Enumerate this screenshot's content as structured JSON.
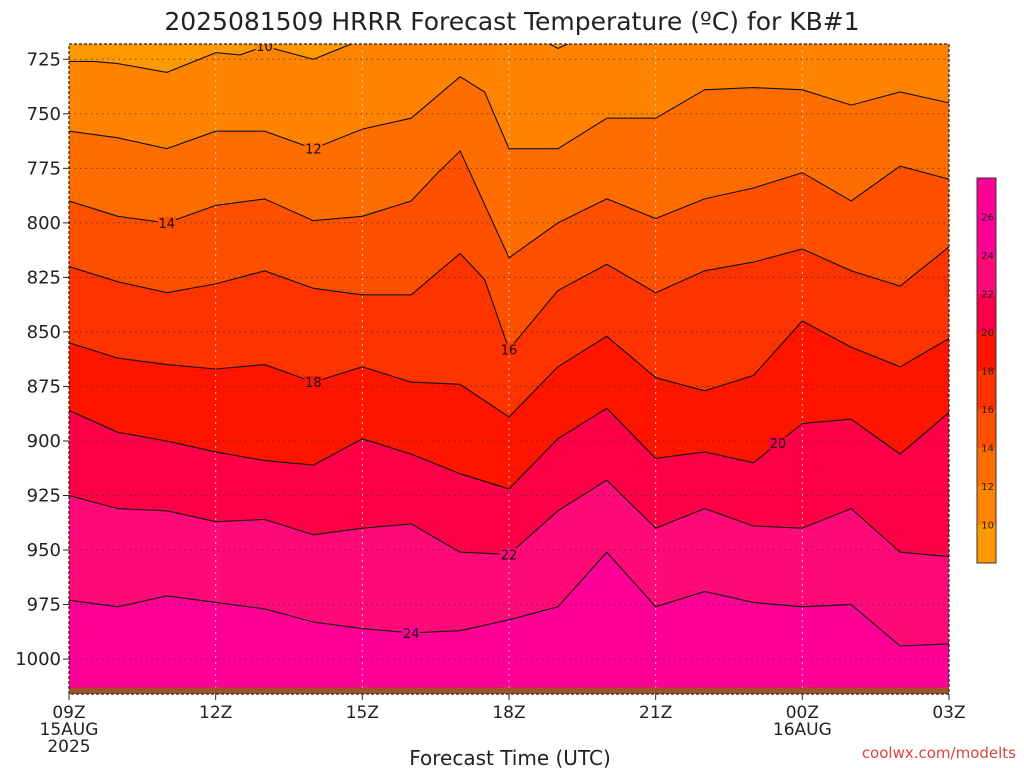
{
  "chart_data": {
    "type": "contour",
    "title": "2025081509 HRRR Forecast Temperature (ºC) for KB#1",
    "xlabel": "Forecast Time (UTC)",
    "credit": "coolwx.com/modelts",
    "y_inverted": true,
    "ylim": [
      1016,
      718
    ],
    "xlim": [
      0,
      18
    ],
    "y_ticks": [
      {
        "value": 725,
        "label": "725"
      },
      {
        "value": 750,
        "label": "750"
      },
      {
        "value": 775,
        "label": "775"
      },
      {
        "value": 800,
        "label": "800"
      },
      {
        "value": 825,
        "label": "825"
      },
      {
        "value": 850,
        "label": "850"
      },
      {
        "value": 875,
        "label": "875"
      },
      {
        "value": 900,
        "label": "900"
      },
      {
        "value": 925,
        "label": "925"
      },
      {
        "value": 950,
        "label": "950"
      },
      {
        "value": 975,
        "label": "975"
      },
      {
        "value": 1000,
        "label": "1000"
      }
    ],
    "x_ticks": [
      {
        "value": 0,
        "lines": [
          "09Z",
          "15AUG",
          "2025"
        ]
      },
      {
        "value": 3,
        "lines": [
          "12Z"
        ]
      },
      {
        "value": 6,
        "lines": [
          "15Z"
        ]
      },
      {
        "value": 9,
        "lines": [
          "18Z"
        ]
      },
      {
        "value": 12,
        "lines": [
          "21Z"
        ]
      },
      {
        "value": 15,
        "lines": [
          "00Z",
          "16AUG"
        ]
      },
      {
        "value": 18,
        "lines": [
          "03Z"
        ]
      }
    ],
    "grid": true,
    "ground": {
      "color": "#a0522d",
      "surface_pressure": [
        1013,
        1013,
        1013,
        1013,
        1013,
        1013,
        1013,
        1013,
        1013,
        1013,
        1013,
        1013,
        1013,
        1013,
        1013,
        1013,
        1013,
        1013,
        1013
      ]
    },
    "levels": [
      10,
      12,
      14,
      16,
      18,
      20,
      22,
      24
    ],
    "band_colors": [
      "#ff9900",
      "#ff8300",
      "#ff6c00",
      "#ff5000",
      "#ff3300",
      "#ff1400",
      "#ff0048",
      "#ff0a78",
      "#ff0096"
    ],
    "contours": [
      {
        "level": 10,
        "label": "10",
        "label_x": 4.0,
        "x": [
          0,
          0.5,
          1,
          2,
          3,
          3.5,
          4,
          5,
          6,
          6.5,
          7,
          8,
          9,
          9.5,
          10,
          10.5,
          11,
          12,
          13,
          14,
          15,
          16,
          17,
          18
        ],
        "p": [
          726,
          726,
          727,
          731,
          722,
          723,
          719,
          725,
          716,
          716,
          716,
          711,
          709,
          714,
          720,
          715,
          712,
          712,
          712,
          712,
          712,
          712,
          712,
          712
        ]
      },
      {
        "level": 12,
        "label": "12",
        "label_x": 5.0,
        "x": [
          0,
          1,
          2,
          3,
          4,
          5,
          6,
          7,
          8,
          8.5,
          9,
          10,
          11,
          12,
          13,
          14,
          15,
          16,
          17,
          18
        ],
        "p": [
          758,
          761,
          766,
          758,
          758,
          766,
          757,
          752,
          733,
          740,
          766,
          766,
          752,
          752,
          739,
          738,
          739,
          746,
          740,
          745
        ]
      },
      {
        "level": 14,
        "label": "14",
        "label_x": 2.0,
        "x": [
          0,
          1,
          2,
          3,
          4,
          5,
          6,
          7,
          7.5,
          8,
          9,
          10,
          11,
          12,
          13,
          14,
          15,
          16,
          17,
          18
        ],
        "p": [
          790,
          797,
          800,
          792,
          789,
          799,
          797,
          790,
          778,
          767,
          816,
          800,
          789,
          798,
          789,
          784,
          777,
          790,
          774,
          780
        ]
      },
      {
        "level": 16,
        "label": "16",
        "label_x": 9.0,
        "x": [
          0,
          1,
          2,
          3,
          4,
          5,
          6,
          7,
          8,
          8.5,
          9,
          10,
          11,
          12,
          13,
          14,
          15,
          16,
          17,
          18
        ],
        "p": [
          820,
          827,
          832,
          828,
          822,
          830,
          833,
          833,
          814,
          826,
          858,
          831,
          819,
          832,
          822,
          818,
          812,
          822,
          829,
          811
        ]
      },
      {
        "level": 18,
        "label": "18",
        "label_x": 5.0,
        "x": [
          0,
          1,
          2,
          3,
          4,
          5,
          6,
          7,
          8,
          9,
          10,
          11,
          12,
          13,
          14,
          15,
          16,
          17,
          18
        ],
        "p": [
          855,
          862,
          865,
          867,
          865,
          873,
          866,
          873,
          874,
          889,
          866,
          852,
          871,
          877,
          870,
          845,
          857,
          866,
          853
        ]
      },
      {
        "level": 20,
        "label": "20",
        "label_x": 14.5,
        "x": [
          0,
          1,
          2,
          3,
          4,
          5,
          6,
          7,
          8,
          9,
          10,
          11,
          12,
          13,
          14,
          15,
          16,
          17,
          18
        ],
        "p": [
          886,
          896,
          900,
          905,
          909,
          911,
          899,
          906,
          915,
          922,
          899,
          885,
          908,
          905,
          910,
          892,
          890,
          906,
          887
        ]
      },
      {
        "level": 22,
        "label": "22",
        "label_x": 9.0,
        "x": [
          0,
          1,
          2,
          3,
          4,
          5,
          6,
          7,
          8,
          9,
          10,
          11,
          12,
          13,
          14,
          15,
          16,
          17,
          18
        ],
        "p": [
          925,
          931,
          932,
          937,
          936,
          943,
          940,
          938,
          951,
          952,
          932,
          918,
          940,
          931,
          939,
          940,
          931,
          951,
          953
        ]
      },
      {
        "level": 24,
        "label": "24",
        "label_x": 7.0,
        "x": [
          0,
          1,
          2,
          3,
          4,
          5,
          6,
          7,
          8,
          9,
          10,
          11,
          12,
          13,
          14,
          15,
          16,
          17,
          18
        ],
        "p": [
          973,
          976,
          971,
          974,
          977,
          983,
          986,
          988,
          987,
          982,
          976,
          951,
          976,
          969,
          974,
          976,
          975,
          994,
          993
        ]
      }
    ],
    "colorbar": {
      "colors": [
        "#ff9900",
        "#ff8300",
        "#ff6c00",
        "#ff5000",
        "#ff3300",
        "#ff1400",
        "#ff0048",
        "#ff0a78",
        "#ff0096",
        "#ff0096"
      ],
      "labels": [
        "10",
        "12",
        "14",
        "16",
        "18",
        "20",
        "22",
        "24",
        "26"
      ]
    }
  }
}
